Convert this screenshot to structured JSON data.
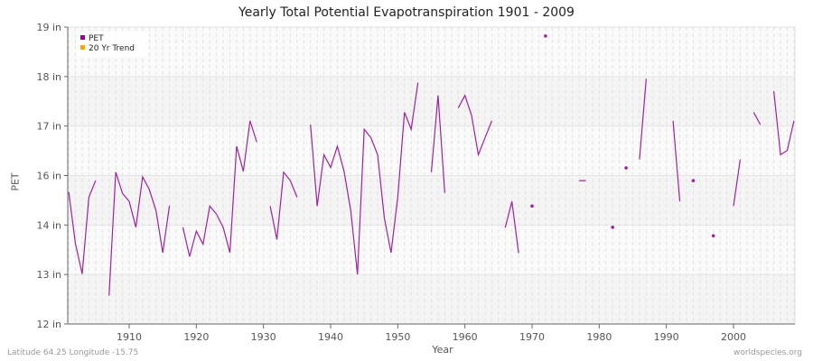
{
  "chart_data": {
    "type": "line",
    "title": "Yearly Total Potential Evapotranspiration 1901 - 2009",
    "xlabel": "Year",
    "ylabel": "PET",
    "xlim": [
      1901,
      2009
    ],
    "ylim": [
      12,
      19
    ],
    "x_ticks": [
      1910,
      1920,
      1930,
      1940,
      1950,
      1960,
      1970,
      1980,
      1990,
      2000
    ],
    "y_tick_labels": [
      "12 in",
      "13 in",
      "14 in",
      "16 in",
      "17 in",
      "18 in",
      "19 in"
    ],
    "grid": true,
    "legend": {
      "placement": "top-left",
      "entries": [
        {
          "name": "PET",
          "color": "#9b009b"
        },
        {
          "name": "20 Yr Trend",
          "color": "#ffa500"
        }
      ]
    },
    "series": [
      {
        "name": "PET",
        "color": "#a020a0",
        "x_start": 1901,
        "values": [
          15.11,
          13.89,
          13.18,
          14.99,
          15.38,
          null,
          12.67,
          15.58,
          15.08,
          14.89,
          14.28,
          15.47,
          15.17,
          14.67,
          13.68,
          14.79,
          null,
          14.28,
          13.59,
          14.19,
          13.88,
          14.78,
          14.59,
          14.28,
          13.68,
          16.19,
          15.6,
          16.79,
          16.29,
          null,
          14.78,
          13.99,
          15.58,
          15.38,
          14.99,
          null,
          16.7,
          14.78,
          15.99,
          15.69,
          16.19,
          15.6,
          14.67,
          13.17,
          16.59,
          16.39,
          15.99,
          14.5,
          13.68,
          14.99,
          16.99,
          16.59,
          17.69,
          null,
          15.58,
          17.39,
          15.09,
          null,
          17.09,
          17.39,
          16.91,
          15.99,
          16.39,
          16.79,
          null,
          14.27,
          14.89,
          13.67,
          null,
          14.78,
          null,
          18.79,
          null,
          null,
          null,
          null,
          15.38,
          15.38,
          null,
          null,
          null,
          14.28,
          null,
          15.68,
          null,
          15.88,
          17.78,
          null,
          null,
          null,
          16.79,
          14.89,
          null,
          15.38,
          null,
          null,
          14.08,
          null,
          null,
          14.78,
          15.88,
          null,
          16.99,
          16.7,
          null,
          17.49,
          15.99,
          16.09,
          16.79
        ]
      }
    ]
  },
  "footer": {
    "left": "Latitude 64.25 Longitude -15.75",
    "right": "worldspecies.org"
  }
}
